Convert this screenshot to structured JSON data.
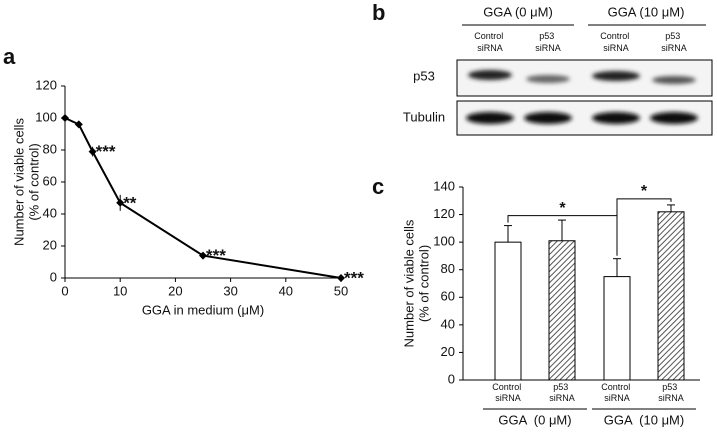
{
  "panel_labels": [
    "a",
    "b",
    "c"
  ],
  "chart_data": [
    {
      "type": "line",
      "ylabel": [
        "Number of viable cells",
        "(% of control)"
      ],
      "xlabel": "GGA in medium (μM)",
      "x": [
        0,
        2.5,
        5,
        10,
        25,
        50
      ],
      "values": [
        100,
        96,
        79,
        47,
        14,
        0
      ],
      "errors": [
        0,
        1,
        3,
        5,
        1,
        0
      ],
      "annotations": [
        null,
        null,
        "***",
        "**",
        "***",
        "***"
      ],
      "color": "#000000",
      "xlim": [
        0,
        50
      ],
      "xticks": [
        0,
        10,
        20,
        30,
        40,
        50
      ],
      "ylim": [
        0,
        120
      ],
      "yticks": [
        0,
        20,
        40,
        60,
        80,
        100,
        120
      ]
    },
    {
      "type": "bar",
      "ylabel": [
        "Number of viable cells",
        "(% of control)"
      ],
      "categories": [
        "GGA  (0 μM)",
        "GGA  (10 μM)"
      ],
      "series": [
        {
          "name": "Control siRNA",
          "color": "#ffffff",
          "values": [
            100,
            75
          ],
          "errors": [
            12,
            13
          ]
        },
        {
          "name": "p53 siRNA",
          "color": "#7f7f7f",
          "hatch": true,
          "values": [
            101,
            122
          ],
          "errors": [
            15,
            5
          ]
        }
      ],
      "annotations": [
        "*",
        "*"
      ],
      "ylim": [
        0,
        140
      ],
      "yticks": [
        0,
        20,
        40,
        60,
        80,
        100,
        120,
        140
      ]
    }
  ],
  "blot": {
    "groups": [
      "GGA (0 μM)",
      "GGA (10 μM)"
    ],
    "lanes": [
      "Control siRNA",
      "p53 siRNA",
      "Control siRNA",
      "p53 siRNA"
    ],
    "rows": [
      "p53",
      "Tubulin"
    ]
  }
}
